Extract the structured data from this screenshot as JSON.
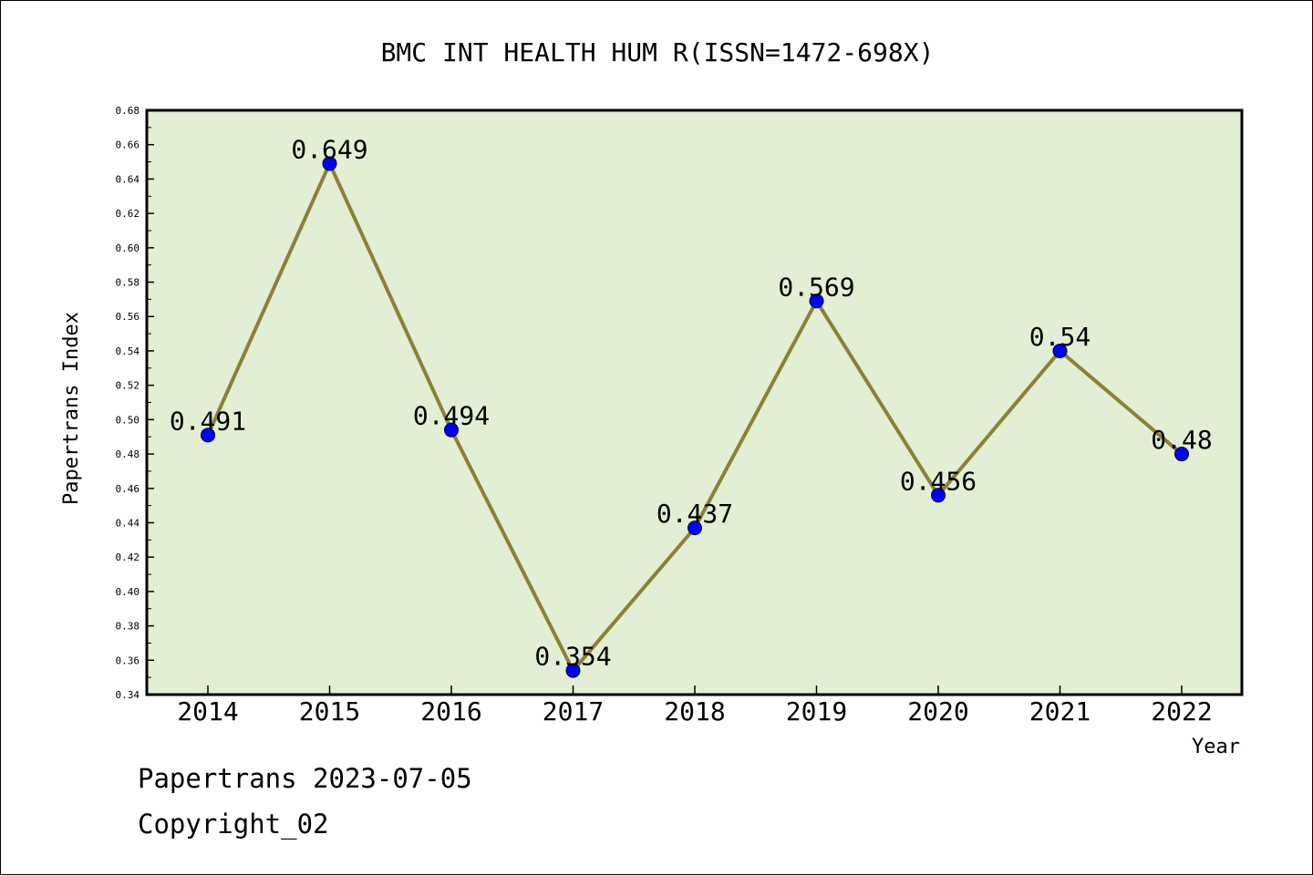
{
  "chart_data": {
    "type": "line",
    "title": "BMC INT HEALTH HUM R(ISSN=1472-698X)",
    "xlabel": "Year",
    "ylabel": "Papertrans Index",
    "categories": [
      "2014",
      "2015",
      "2016",
      "2017",
      "2018",
      "2019",
      "2020",
      "2021",
      "2022"
    ],
    "values": [
      0.491,
      0.649,
      0.494,
      0.354,
      0.437,
      0.569,
      0.456,
      0.54,
      0.48
    ],
    "data_labels": [
      "0.491",
      "0.649",
      "0.494",
      "0.354",
      "0.437",
      "0.569",
      "0.456",
      "0.54",
      "0.48"
    ],
    "ylim": [
      0.34,
      0.68
    ],
    "yticks": [
      "0.34",
      "0.36",
      "0.38",
      "0.40",
      "0.42",
      "0.44",
      "0.46",
      "0.48",
      "0.50",
      "0.52",
      "0.54",
      "0.56",
      "0.58",
      "0.60",
      "0.62",
      "0.64",
      "0.66",
      "0.68"
    ],
    "grid": false,
    "legend": "none",
    "colors": {
      "plot_background": "#e2efd5",
      "line": "#8b8036",
      "marker": "#0000ff"
    }
  },
  "footer": {
    "line1": "Papertrans 2023-07-05",
    "line2": "Copyright_02"
  }
}
